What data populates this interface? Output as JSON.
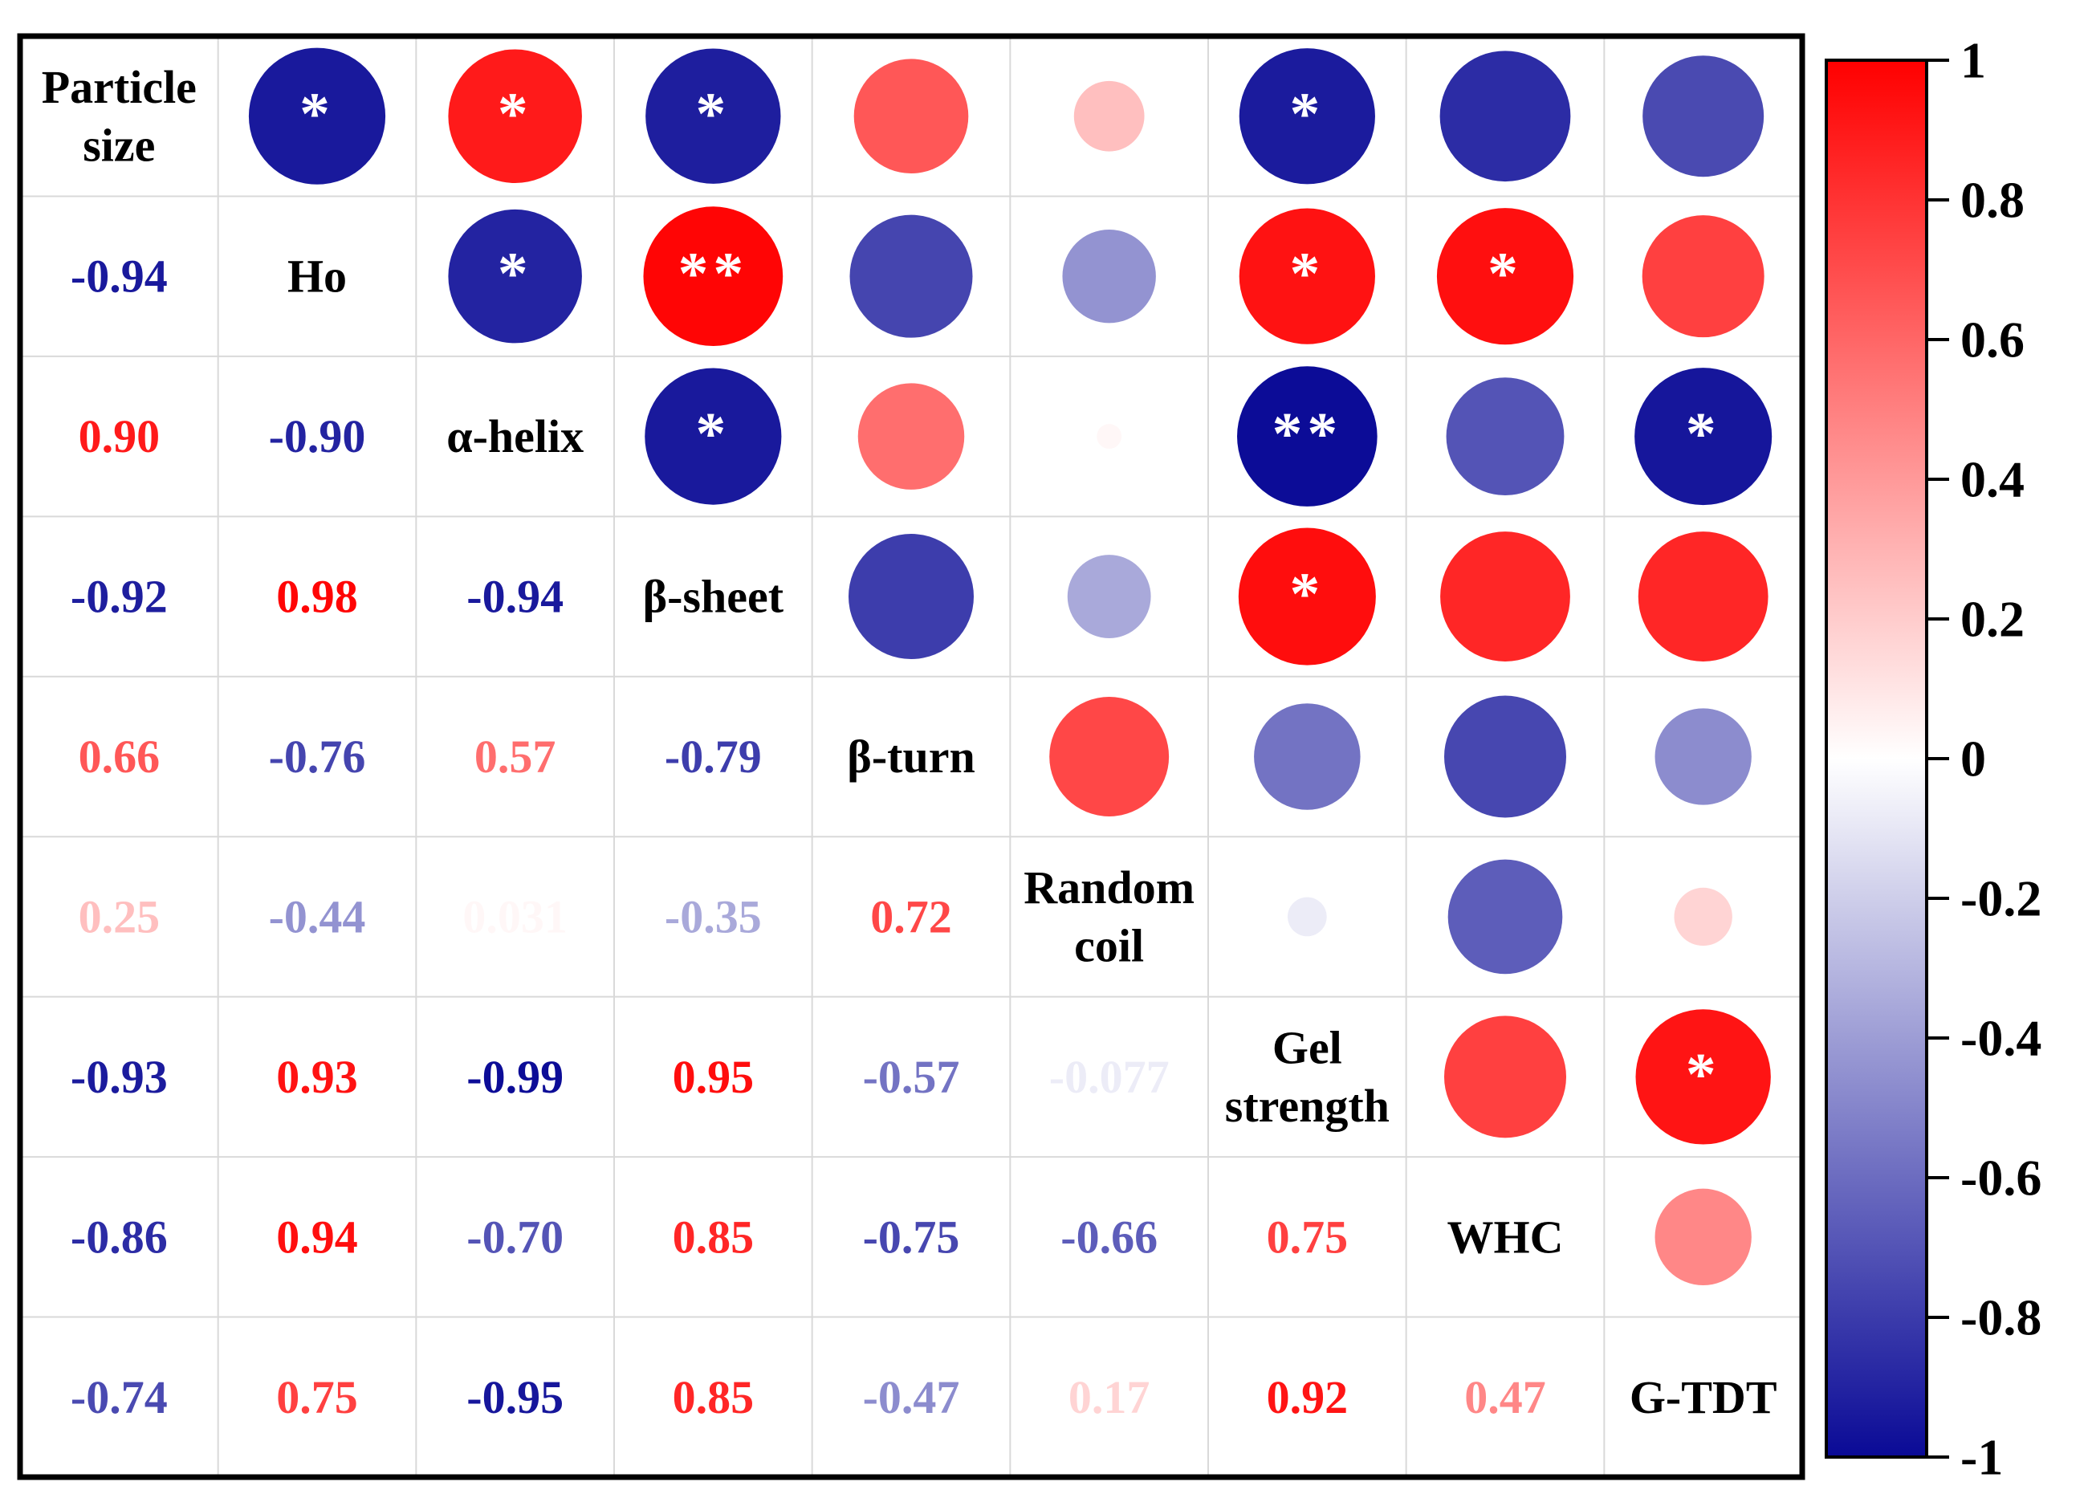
{
  "chart_data": {
    "type": "heatmap",
    "title": "",
    "variables": [
      "Particle size",
      "Ho",
      "α-helix",
      "β-sheet",
      "β-turn",
      "Random coil",
      "Gel strength",
      "WHC",
      "G-TDT"
    ],
    "variable_lines": [
      [
        "Particle",
        "size"
      ],
      [
        "Ho"
      ],
      [
        "α-helix"
      ],
      [
        "β-sheet"
      ],
      [
        "β-turn"
      ],
      [
        "Random",
        "coil"
      ],
      [
        "Gel",
        "strength"
      ],
      [
        "WHC"
      ],
      [
        "G-TDT"
      ]
    ],
    "matrix": [
      [
        1,
        -0.94,
        0.9,
        -0.92,
        0.66,
        0.25,
        -0.93,
        -0.86,
        -0.74
      ],
      [
        -0.94,
        1,
        -0.9,
        0.98,
        -0.76,
        -0.44,
        0.93,
        0.94,
        0.75
      ],
      [
        0.9,
        -0.9,
        1,
        -0.94,
        0.57,
        0.031,
        -0.99,
        -0.7,
        -0.95
      ],
      [
        -0.92,
        0.98,
        -0.94,
        1,
        -0.79,
        -0.35,
        0.95,
        0.85,
        0.85
      ],
      [
        0.66,
        -0.76,
        0.57,
        -0.79,
        1,
        0.72,
        -0.57,
        -0.75,
        -0.47
      ],
      [
        0.25,
        -0.44,
        0.031,
        -0.35,
        0.72,
        1,
        -0.077,
        -0.66,
        0.17
      ],
      [
        -0.93,
        0.93,
        -0.99,
        0.95,
        -0.57,
        -0.077,
        1,
        0.75,
        0.92
      ],
      [
        -0.86,
        0.94,
        -0.7,
        0.85,
        -0.75,
        -0.66,
        0.75,
        1,
        0.47
      ],
      [
        -0.74,
        0.75,
        -0.95,
        0.85,
        -0.47,
        0.17,
        0.92,
        0.47,
        1
      ]
    ],
    "lower_labels": [
      [
        "-0.94"
      ],
      [
        "0.90",
        "-0.90"
      ],
      [
        "-0.92",
        "0.98",
        "-0.94"
      ],
      [
        "0.66",
        "-0.76",
        "0.57",
        "-0.79"
      ],
      [
        "0.25",
        "-0.44",
        "0.031",
        "-0.35",
        "0.72"
      ],
      [
        "-0.93",
        "0.93",
        "-0.99",
        "0.95",
        "-0.57",
        "-0.077"
      ],
      [
        "-0.86",
        "0.94",
        "-0.70",
        "0.85",
        "-0.75",
        "-0.66",
        "0.75"
      ],
      [
        "-0.74",
        "0.75",
        "-0.95",
        "0.85",
        "-0.47",
        "0.17",
        "0.92",
        "0.47"
      ]
    ],
    "significance": [
      {
        "row": 0,
        "col": 1,
        "mark": "*"
      },
      {
        "row": 0,
        "col": 2,
        "mark": "*"
      },
      {
        "row": 0,
        "col": 3,
        "mark": "*"
      },
      {
        "row": 0,
        "col": 6,
        "mark": "*"
      },
      {
        "row": 1,
        "col": 2,
        "mark": "*"
      },
      {
        "row": 1,
        "col": 3,
        "mark": "**"
      },
      {
        "row": 1,
        "col": 6,
        "mark": "*"
      },
      {
        "row": 1,
        "col": 7,
        "mark": "*"
      },
      {
        "row": 2,
        "col": 3,
        "mark": "*"
      },
      {
        "row": 2,
        "col": 6,
        "mark": "**"
      },
      {
        "row": 2,
        "col": 8,
        "mark": "*"
      },
      {
        "row": 3,
        "col": 6,
        "mark": "*"
      },
      {
        "row": 6,
        "col": 8,
        "mark": "*"
      }
    ],
    "colorbar": {
      "range": [
        -1,
        1
      ],
      "ticks": [
        1,
        0.8,
        0.6,
        0.4,
        0.2,
        0,
        -0.2,
        -0.4,
        -0.6,
        -0.8,
        -1
      ],
      "tick_labels": [
        "1",
        "0.8",
        "0.6",
        "0.4",
        "0.2",
        "0",
        "-0.2",
        "-0.4",
        "-0.6",
        "-0.8",
        "-1"
      ],
      "colors": {
        "negative": "#0a0a96",
        "neutral": "#ffffff",
        "positive": "#ff0000"
      }
    },
    "upper_glyph": "circle",
    "lower_glyph": "number"
  }
}
